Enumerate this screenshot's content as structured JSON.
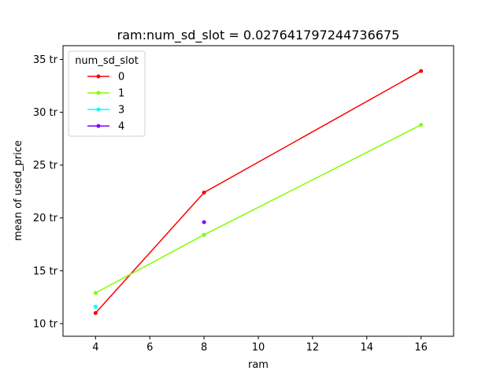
{
  "chart_data": {
    "type": "line",
    "title": "ram:num_sd_slot = 0.027641797244736675",
    "xlabel": "ram",
    "ylabel": "mean of used_price",
    "xlim": [
      2.8,
      17.2
    ],
    "ylim": [
      8.8,
      36.3
    ],
    "xticks": [
      4,
      6,
      8,
      10,
      12,
      14,
      16
    ],
    "xtick_labels": [
      "4",
      "6",
      "8",
      "10",
      "12",
      "14",
      "16"
    ],
    "yticks": [
      10,
      15,
      20,
      25,
      30,
      35
    ],
    "ytick_labels": [
      "10 tr",
      "15 tr",
      "20 tr",
      "25 tr",
      "30 tr",
      "35 tr"
    ],
    "grid": false,
    "legend": {
      "title": "num_sd_slot",
      "placement": "top-left"
    },
    "series": [
      {
        "name": "0",
        "color": "#ff0000",
        "points": [
          [
            4,
            11.0
          ],
          [
            8,
            22.4
          ],
          [
            16,
            33.9
          ]
        ]
      },
      {
        "name": "1",
        "color": "#80ff00",
        "points": [
          [
            4,
            12.9
          ],
          [
            8,
            18.4
          ],
          [
            16,
            28.8
          ]
        ]
      },
      {
        "name": "3",
        "color": "#00ffff",
        "points": [
          [
            4,
            11.6
          ]
        ]
      },
      {
        "name": "4",
        "color": "#8000ff",
        "points": [
          [
            8,
            19.6
          ]
        ]
      }
    ]
  }
}
